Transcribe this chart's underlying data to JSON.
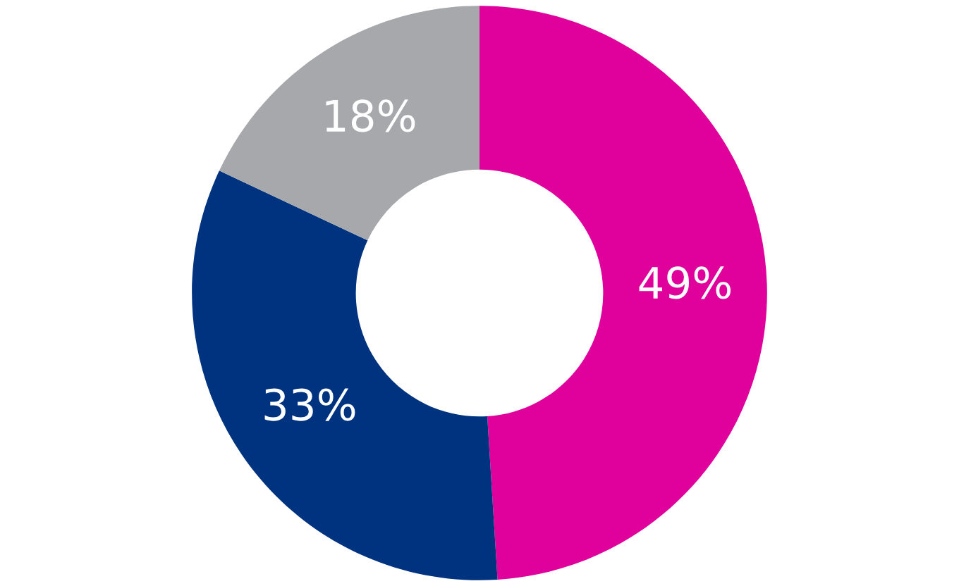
{
  "chart_data": {
    "type": "donut",
    "categories": [
      null,
      null,
      null
    ],
    "values": [
      49,
      33,
      18
    ],
    "colors": [
      "#e0009b",
      "#00337f",
      "#a6a8ab"
    ],
    "value_labels": [
      "49%",
      "33%",
      "18%"
    ]
  }
}
